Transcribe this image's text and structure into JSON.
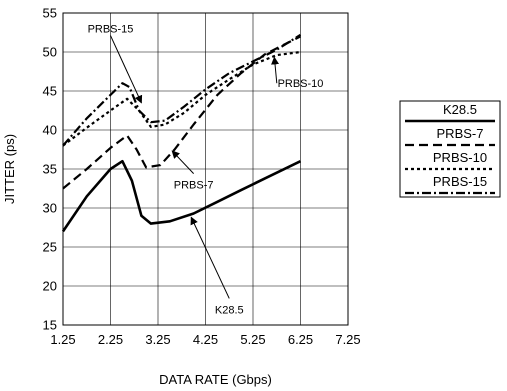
{
  "chart_data": {
    "type": "line",
    "xlabel": "DATA RATE (Gbps)",
    "ylabel": "JITTER (ps)",
    "xlim": [
      1.25,
      7.25
    ],
    "ylim": [
      15,
      55
    ],
    "xticks": [
      "1.25",
      "2.25",
      "3.25",
      "4.25",
      "5.25",
      "6.25",
      "7.25"
    ],
    "yticks": [
      "15",
      "20",
      "25",
      "30",
      "35",
      "40",
      "45",
      "50",
      "55"
    ],
    "grid": true,
    "legend_position": "right",
    "series": [
      {
        "name": "K28.5",
        "style": "solid",
        "x": [
          1.25,
          1.75,
          2.25,
          2.5,
          2.7,
          2.9,
          3.1,
          3.5,
          4.0,
          4.5,
          5.0,
          5.5,
          6.25
        ],
        "y": [
          27,
          31.5,
          35,
          36,
          33.5,
          29,
          28,
          28.3,
          29.3,
          30.8,
          32.3,
          33.8,
          36
        ]
      },
      {
        "name": "PRBS-7",
        "style": "dashed",
        "x": [
          1.25,
          1.75,
          2.25,
          2.6,
          2.8,
          3.0,
          3.3,
          3.6,
          4.0,
          4.5,
          5.0,
          5.5,
          6.25
        ],
        "y": [
          32.5,
          35,
          37.7,
          39.3,
          37.5,
          35.2,
          35.5,
          37.5,
          40.7,
          44.5,
          47.3,
          49.7,
          52
        ]
      },
      {
        "name": "PRBS-10",
        "style": "dotted",
        "x": [
          1.25,
          1.75,
          2.25,
          2.6,
          2.85,
          3.1,
          3.4,
          3.8,
          4.25,
          4.75,
          5.25,
          5.75,
          6.25
        ],
        "y": [
          38,
          40.3,
          42.5,
          44,
          42.5,
          40.4,
          40.7,
          42.2,
          44.5,
          46.5,
          48.4,
          49.6,
          50
        ]
      },
      {
        "name": "PRBS-15",
        "style": "dashdot",
        "x": [
          1.25,
          1.75,
          2.25,
          2.5,
          2.65,
          2.85,
          3.1,
          3.4,
          3.8,
          4.25,
          4.75,
          5.25,
          5.75,
          6.25
        ],
        "y": [
          38,
          41.5,
          44.5,
          46,
          45.5,
          42.5,
          41,
          41.2,
          43,
          45.2,
          47.3,
          48.8,
          50.3,
          52.2
        ]
      }
    ],
    "annotations": [
      {
        "text": "PRBS-15",
        "x": 2.25,
        "y": 53,
        "target_x": 2.9,
        "target_y": 43.5
      },
      {
        "text": "PRBS-10",
        "x": 6.25,
        "y": 46,
        "target_x": 5.7,
        "target_y": 49.3
      },
      {
        "text": "PRBS-7",
        "x": 4.0,
        "y": 33,
        "target_x": 3.55,
        "target_y": 37.3
      },
      {
        "text": "K28.5",
        "x": 4.75,
        "y": 17,
        "target_x": 3.95,
        "target_y": 28.8
      }
    ]
  }
}
